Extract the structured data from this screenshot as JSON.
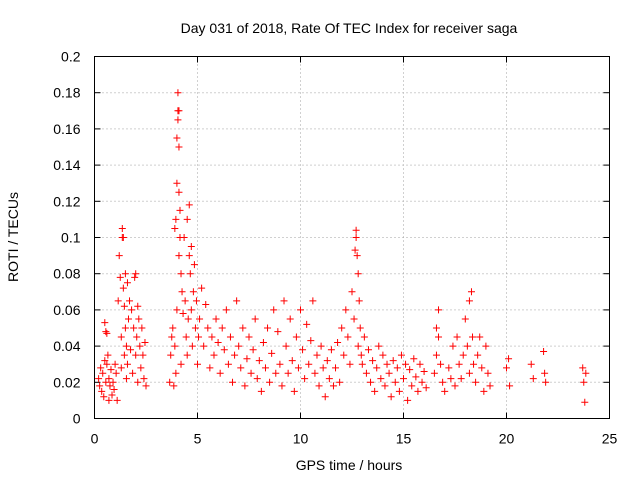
{
  "chart_data": {
    "type": "scatter",
    "title": "Day 031 of 2018, Rate Of TEC Index for receiver saga",
    "xlabel": "GPS time / hours",
    "ylabel": "ROTI / TECUs",
    "xlim": [
      0,
      25
    ],
    "ylim": [
      0,
      0.2
    ],
    "xticks": [
      0,
      5,
      10,
      15,
      20,
      25
    ],
    "xtick_labels": [
      "0",
      "5",
      "10",
      "15",
      "20",
      "25"
    ],
    "yticks": [
      0,
      0.02,
      0.04,
      0.06,
      0.08,
      0.1,
      0.12,
      0.14,
      0.16,
      0.18,
      0.2
    ],
    "ytick_labels": [
      "0",
      "0.02",
      "0.04",
      "0.06",
      "0.08",
      "0.1",
      "0.12",
      "0.14",
      "0.16",
      "0.18",
      "0.2"
    ],
    "grid": true,
    "marker": "+",
    "series": [
      {
        "name": "ROTI",
        "color": "#ff0000",
        "points": [
          [
            0.2,
            0.022
          ],
          [
            0.25,
            0.018
          ],
          [
            0.3,
            0.028
          ],
          [
            0.35,
            0.015
          ],
          [
            0.4,
            0.025
          ],
          [
            0.45,
            0.012
          ],
          [
            0.5,
            0.032
          ],
          [
            0.5,
            0.053
          ],
          [
            0.55,
            0.048
          ],
          [
            0.55,
            0.02
          ],
          [
            0.6,
            0.047
          ],
          [
            0.6,
            0.03
          ],
          [
            0.65,
            0.035
          ],
          [
            0.7,
            0.01
          ],
          [
            0.7,
            0.022
          ],
          [
            0.75,
            0.018
          ],
          [
            0.8,
            0.027
          ],
          [
            0.85,
            0.013
          ],
          [
            0.9,
            0.02
          ],
          [
            0.95,
            0.016
          ],
          [
            1.0,
            0.03
          ],
          [
            1.05,
            0.025
          ],
          [
            1.1,
            0.01
          ],
          [
            1.15,
            0.065
          ],
          [
            1.2,
            0.09
          ],
          [
            1.25,
            0.078
          ],
          [
            1.3,
            0.045
          ],
          [
            1.3,
            0.028
          ],
          [
            1.35,
            0.105
          ],
          [
            1.35,
            0.1
          ],
          [
            1.4,
            0.1
          ],
          [
            1.4,
            0.072
          ],
          [
            1.45,
            0.062
          ],
          [
            1.45,
            0.035
          ],
          [
            1.5,
            0.08
          ],
          [
            1.5,
            0.05
          ],
          [
            1.55,
            0.04
          ],
          [
            1.55,
            0.022
          ],
          [
            1.6,
            0.075
          ],
          [
            1.6,
            0.03
          ],
          [
            1.65,
            0.055
          ],
          [
            1.7,
            0.065
          ],
          [
            1.75,
            0.038
          ],
          [
            1.8,
            0.06
          ],
          [
            1.85,
            0.025
          ],
          [
            1.9,
            0.05
          ],
          [
            1.95,
            0.078
          ],
          [
            2.0,
            0.08
          ],
          [
            2.0,
            0.035
          ],
          [
            2.05,
            0.045
          ],
          [
            2.1,
            0.062
          ],
          [
            2.1,
            0.02
          ],
          [
            2.15,
            0.055
          ],
          [
            2.2,
            0.04
          ],
          [
            2.25,
            0.028
          ],
          [
            2.3,
            0.05
          ],
          [
            2.35,
            0.035
          ],
          [
            2.4,
            0.022
          ],
          [
            2.45,
            0.042
          ],
          [
            2.5,
            0.018
          ],
          [
            3.65,
            0.02
          ],
          [
            3.7,
            0.035
          ],
          [
            3.75,
            0.045
          ],
          [
            3.8,
            0.05
          ],
          [
            3.85,
            0.018
          ],
          [
            3.9,
            0.105
          ],
          [
            3.9,
            0.04
          ],
          [
            3.95,
            0.11
          ],
          [
            3.95,
            0.025
          ],
          [
            4.0,
            0.155
          ],
          [
            4.0,
            0.13
          ],
          [
            4.0,
            0.06
          ],
          [
            4.05,
            0.18
          ],
          [
            4.05,
            0.17
          ],
          [
            4.05,
            0.165
          ],
          [
            4.1,
            0.17
          ],
          [
            4.1,
            0.15
          ],
          [
            4.1,
            0.125
          ],
          [
            4.1,
            0.09
          ],
          [
            4.15,
            0.115
          ],
          [
            4.15,
            0.1
          ],
          [
            4.2,
            0.08
          ],
          [
            4.2,
            0.03
          ],
          [
            4.25,
            0.07
          ],
          [
            4.3,
            0.058
          ],
          [
            4.35,
            0.1
          ],
          [
            4.4,
            0.065
          ],
          [
            4.45,
            0.045
          ],
          [
            4.5,
            0.11
          ],
          [
            4.5,
            0.035
          ],
          [
            4.55,
            0.055
          ],
          [
            4.6,
            0.118
          ],
          [
            4.6,
            0.09
          ],
          [
            4.65,
            0.08
          ],
          [
            4.7,
            0.095
          ],
          [
            4.7,
            0.06
          ],
          [
            4.75,
            0.04
          ],
          [
            4.8,
            0.07
          ],
          [
            4.85,
            0.085
          ],
          [
            4.9,
            0.05
          ],
          [
            4.95,
            0.065
          ],
          [
            5.0,
            0.03
          ],
          [
            5.05,
            0.045
          ],
          [
            5.1,
            0.055
          ],
          [
            5.2,
            0.072
          ],
          [
            5.3,
            0.04
          ],
          [
            5.4,
            0.063
          ],
          [
            5.5,
            0.05
          ],
          [
            5.6,
            0.028
          ],
          [
            5.7,
            0.045
          ],
          [
            5.8,
            0.035
          ],
          [
            5.9,
            0.055
          ],
          [
            6.0,
            0.042
          ],
          [
            6.1,
            0.025
          ],
          [
            6.2,
            0.05
          ],
          [
            6.3,
            0.038
          ],
          [
            6.4,
            0.06
          ],
          [
            6.5,
            0.03
          ],
          [
            6.6,
            0.045
          ],
          [
            6.7,
            0.02
          ],
          [
            6.8,
            0.035
          ],
          [
            6.9,
            0.065
          ],
          [
            7.0,
            0.04
          ],
          [
            7.1,
            0.028
          ],
          [
            7.2,
            0.05
          ],
          [
            7.3,
            0.018
          ],
          [
            7.4,
            0.033
          ],
          [
            7.5,
            0.045
          ],
          [
            7.6,
            0.025
          ],
          [
            7.7,
            0.038
          ],
          [
            7.8,
            0.055
          ],
          [
            7.9,
            0.022
          ],
          [
            8.0,
            0.032
          ],
          [
            8.1,
            0.015
          ],
          [
            8.2,
            0.042
          ],
          [
            8.3,
            0.028
          ],
          [
            8.4,
            0.05
          ],
          [
            8.5,
            0.02
          ],
          [
            8.6,
            0.036
          ],
          [
            8.7,
            0.06
          ],
          [
            8.8,
            0.025
          ],
          [
            8.9,
            0.048
          ],
          [
            9.0,
            0.03
          ],
          [
            9.1,
            0.018
          ],
          [
            9.2,
            0.065
          ],
          [
            9.3,
            0.04
          ],
          [
            9.4,
            0.025
          ],
          [
            9.5,
            0.055
          ],
          [
            9.6,
            0.032
          ],
          [
            9.7,
            0.015
          ],
          [
            9.8,
            0.045
          ],
          [
            9.9,
            0.028
          ],
          [
            10.0,
            0.06
          ],
          [
            10.1,
            0.038
          ],
          [
            10.2,
            0.022
          ],
          [
            10.3,
            0.052
          ],
          [
            10.4,
            0.03
          ],
          [
            10.5,
            0.043
          ],
          [
            10.6,
            0.065
          ],
          [
            10.7,
            0.025
          ],
          [
            10.8,
            0.035
          ],
          [
            10.9,
            0.018
          ],
          [
            11.0,
            0.04
          ],
          [
            11.1,
            0.028
          ],
          [
            11.2,
            0.012
          ],
          [
            11.3,
            0.032
          ],
          [
            11.4,
            0.022
          ],
          [
            11.5,
            0.038
          ],
          [
            11.6,
            0.018
          ],
          [
            11.7,
            0.028
          ],
          [
            11.8,
            0.042
          ],
          [
            11.9,
            0.02
          ],
          [
            12.0,
            0.05
          ],
          [
            12.1,
            0.035
          ],
          [
            12.2,
            0.06
          ],
          [
            12.3,
            0.045
          ],
          [
            12.4,
            0.03
          ],
          [
            12.5,
            0.07
          ],
          [
            12.6,
            0.055
          ],
          [
            12.65,
            0.093
          ],
          [
            12.7,
            0.104
          ],
          [
            12.7,
            0.1
          ],
          [
            12.75,
            0.09
          ],
          [
            12.8,
            0.08
          ],
          [
            12.8,
            0.04
          ],
          [
            12.85,
            0.065
          ],
          [
            12.9,
            0.05
          ],
          [
            12.95,
            0.035
          ],
          [
            13.0,
            0.03
          ],
          [
            13.1,
            0.045
          ],
          [
            13.2,
            0.025
          ],
          [
            13.3,
            0.038
          ],
          [
            13.4,
            0.02
          ],
          [
            13.5,
            0.032
          ],
          [
            13.6,
            0.015
          ],
          [
            13.7,
            0.028
          ],
          [
            13.8,
            0.04
          ],
          [
            13.9,
            0.022
          ],
          [
            14.0,
            0.035
          ],
          [
            14.1,
            0.018
          ],
          [
            14.2,
            0.03
          ],
          [
            14.3,
            0.025
          ],
          [
            14.4,
            0.012
          ],
          [
            14.5,
            0.032
          ],
          [
            14.6,
            0.02
          ],
          [
            14.7,
            0.028
          ],
          [
            14.8,
            0.015
          ],
          [
            14.9,
            0.035
          ],
          [
            15.0,
            0.022
          ],
          [
            15.1,
            0.03
          ],
          [
            15.2,
            0.01
          ],
          [
            15.3,
            0.027
          ],
          [
            15.4,
            0.018
          ],
          [
            15.5,
            0.033
          ],
          [
            15.6,
            0.023
          ],
          [
            15.7,
            0.015
          ],
          [
            15.8,
            0.03
          ],
          [
            15.9,
            0.02
          ],
          [
            16.0,
            0.026
          ],
          [
            16.1,
            0.017
          ],
          [
            16.5,
            0.025
          ],
          [
            16.6,
            0.05
          ],
          [
            16.6,
            0.035
          ],
          [
            16.7,
            0.06
          ],
          [
            16.7,
            0.045
          ],
          [
            16.8,
            0.03
          ],
          [
            16.9,
            0.02
          ],
          [
            17.0,
            0.015
          ],
          [
            17.2,
            0.028
          ],
          [
            17.3,
            0.022
          ],
          [
            17.4,
            0.04
          ],
          [
            17.5,
            0.018
          ],
          [
            17.6,
            0.045
          ],
          [
            17.7,
            0.03
          ],
          [
            17.8,
            0.022
          ],
          [
            17.9,
            0.035
          ],
          [
            18.0,
            0.055
          ],
          [
            18.1,
            0.04
          ],
          [
            18.2,
            0.065
          ],
          [
            18.2,
            0.025
          ],
          [
            18.3,
            0.07
          ],
          [
            18.35,
            0.045
          ],
          [
            18.4,
            0.03
          ],
          [
            18.5,
            0.02
          ],
          [
            18.6,
            0.035
          ],
          [
            18.7,
            0.045
          ],
          [
            18.8,
            0.028
          ],
          [
            18.9,
            0.015
          ],
          [
            19.0,
            0.04
          ],
          [
            19.1,
            0.025
          ],
          [
            19.2,
            0.018
          ],
          [
            20.0,
            0.028
          ],
          [
            20.1,
            0.033
          ],
          [
            20.15,
            0.018
          ],
          [
            21.2,
            0.03
          ],
          [
            21.3,
            0.022
          ],
          [
            21.8,
            0.037
          ],
          [
            21.85,
            0.025
          ],
          [
            21.9,
            0.02
          ],
          [
            23.7,
            0.028
          ],
          [
            23.75,
            0.02
          ],
          [
            23.8,
            0.009
          ],
          [
            23.85,
            0.025
          ]
        ]
      }
    ]
  }
}
